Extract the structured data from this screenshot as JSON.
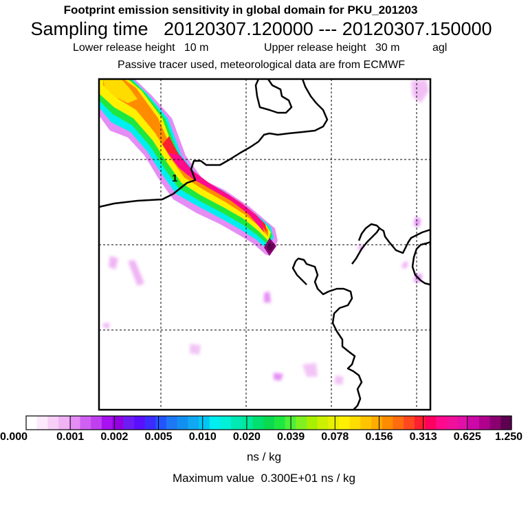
{
  "chart_data": {
    "type": "heatmap",
    "title": "Footprint emission sensitivity in global domain for PKU_201203",
    "subtitle": "Sampling time   20120307.120000 --- 20120307.150000",
    "release": {
      "lower_label": "Lower release height",
      "lower_value": "10 m",
      "upper_label": "Upper release height",
      "upper_value": "30 m",
      "reference": "agl"
    },
    "note": "Passive tracer used, meteorological data are from ECMWF",
    "contour_label": "1",
    "colorbar": {
      "ticks": [
        "0.000",
        "0.001",
        "0.002",
        "0.005",
        "0.010",
        "0.020",
        "0.039",
        "0.078",
        "0.156",
        "0.313",
        "0.625",
        "1.250"
      ],
      "colors": [
        "#ffffff",
        "#fde9fc",
        "#f7cff7",
        "#f0b4f4",
        "#e58df5",
        "#d060f2",
        "#c040f0",
        "#a812f0",
        "#9400e0",
        "#6e1cf4",
        "#5a10ff",
        "#3c2cff",
        "#2255ff",
        "#1e78f5",
        "#1290f0",
        "#10a8f2",
        "#00c6f4",
        "#00eef0",
        "#00f0d8",
        "#00e8b4",
        "#00e89a",
        "#00e070",
        "#0ada50",
        "#1ee840",
        "#4ef03a",
        "#80f020",
        "#a8f000",
        "#ccf000",
        "#e8f000",
        "#fff000",
        "#ffdc00",
        "#ffc400",
        "#ffac00",
        "#ff8c00",
        "#ff6c10",
        "#ff4820",
        "#ff2030",
        "#ff0060",
        "#ff0a8c",
        "#f0109c",
        "#e010a8",
        "#cc08a8",
        "#b0008c",
        "#8a0070",
        "#5c0050"
      ],
      "units": "ns / kg"
    },
    "max_value_text": "Maximum value  0.300E+01 ns / kg",
    "colors": {
      "coast": "#000000",
      "grid": "#000000",
      "background": "#ffffff"
    }
  }
}
